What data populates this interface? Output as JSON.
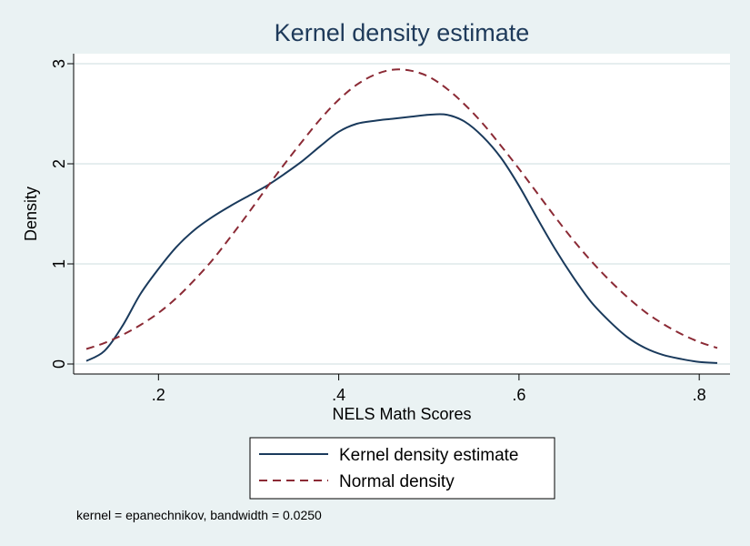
{
  "chart_data": {
    "type": "line",
    "title": "Kernel density estimate",
    "xlabel": "NELS Math Scores",
    "ylabel": "Density",
    "xlim": [
      0.12,
      0.82
    ],
    "ylim": [
      0,
      3
    ],
    "x_ticks": [
      0.2,
      0.4,
      0.6,
      0.8
    ],
    "x_tick_labels": [
      ".2",
      ".4",
      ".6",
      ".8"
    ],
    "y_ticks": [
      0,
      1,
      2,
      3
    ],
    "y_tick_labels": [
      "0",
      "1",
      "2",
      "3"
    ],
    "grid": true,
    "legend_position": "bottom",
    "note": "kernel = epanechnikov, bandwidth = 0.0250",
    "series": [
      {
        "name": "Kernel density estimate",
        "color": "#1a3a5c",
        "style": "solid",
        "x": [
          0.12,
          0.14,
          0.16,
          0.18,
          0.2,
          0.22,
          0.24,
          0.26,
          0.28,
          0.3,
          0.32,
          0.34,
          0.36,
          0.38,
          0.4,
          0.42,
          0.44,
          0.46,
          0.48,
          0.5,
          0.52,
          0.54,
          0.56,
          0.58,
          0.6,
          0.62,
          0.64,
          0.66,
          0.68,
          0.7,
          0.72,
          0.74,
          0.76,
          0.78,
          0.8,
          0.82
        ],
        "y": [
          0.03,
          0.13,
          0.38,
          0.7,
          0.95,
          1.17,
          1.34,
          1.47,
          1.58,
          1.68,
          1.78,
          1.9,
          2.03,
          2.18,
          2.32,
          2.4,
          2.43,
          2.45,
          2.47,
          2.49,
          2.49,
          2.42,
          2.27,
          2.06,
          1.78,
          1.46,
          1.15,
          0.87,
          0.62,
          0.43,
          0.27,
          0.16,
          0.09,
          0.05,
          0.02,
          0.01
        ]
      },
      {
        "name": "Normal density",
        "color": "#8b2a35",
        "style": "dashed",
        "x": [
          0.12,
          0.14,
          0.16,
          0.18,
          0.2,
          0.22,
          0.24,
          0.26,
          0.28,
          0.3,
          0.32,
          0.34,
          0.36,
          0.38,
          0.4,
          0.42,
          0.44,
          0.46,
          0.48,
          0.5,
          0.52,
          0.54,
          0.56,
          0.58,
          0.6,
          0.62,
          0.64,
          0.66,
          0.68,
          0.7,
          0.72,
          0.74,
          0.76,
          0.78,
          0.8,
          0.82
        ],
        "y": [
          0.15,
          0.21,
          0.29,
          0.39,
          0.51,
          0.66,
          0.84,
          1.04,
          1.27,
          1.51,
          1.76,
          2.0,
          2.23,
          2.45,
          2.64,
          2.79,
          2.89,
          2.94,
          2.93,
          2.87,
          2.75,
          2.59,
          2.4,
          2.18,
          1.95,
          1.71,
          1.47,
          1.24,
          1.03,
          0.84,
          0.67,
          0.52,
          0.4,
          0.3,
          0.22,
          0.16
        ]
      }
    ]
  }
}
